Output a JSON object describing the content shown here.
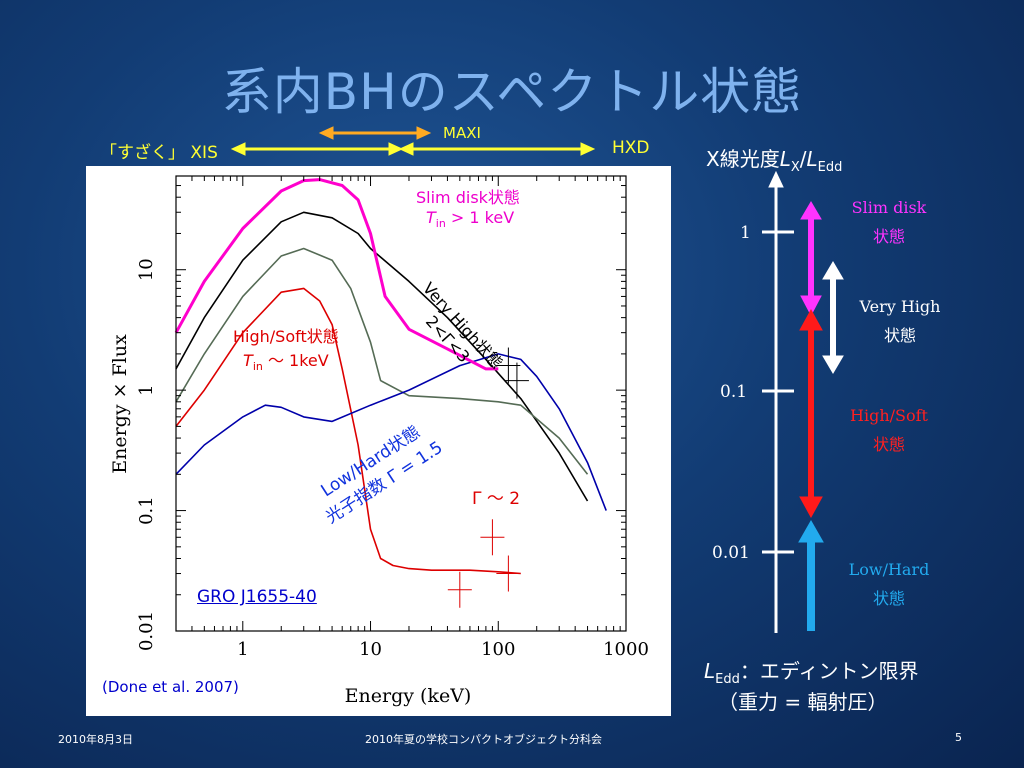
{
  "title": "系内BHのスペクトル状態",
  "instruments": {
    "suzaku": "「すざく」 XIS",
    "maxi": "MAXI",
    "hxd": "HXD"
  },
  "chart_data": {
    "type": "line",
    "source": "GRO J1655-40",
    "citation": "(Done et al. 2007)",
    "xlabel": "Energy (keV)",
    "ylabel": "Energy × Flux",
    "xscale": "log",
    "yscale": "log",
    "xlim": [
      0.3,
      1000
    ],
    "ylim": [
      0.01,
      60
    ],
    "x_ticks": [
      "1",
      "10",
      "100",
      "1000"
    ],
    "y_ticks": [
      "0.01",
      "0.1",
      "1",
      "10"
    ],
    "series": [
      {
        "name": "Very High",
        "color": "#000000",
        "x": [
          0.3,
          0.5,
          1,
          2,
          3,
          5,
          8,
          10,
          20,
          40,
          80,
          150,
          300,
          500
        ],
        "y": [
          1.5,
          4,
          12,
          25,
          30,
          27,
          20,
          15,
          8,
          4,
          1.8,
          0.85,
          0.3,
          0.12
        ]
      },
      {
        "name": "High/Soft (gray)",
        "color": "#556b55",
        "x": [
          0.3,
          0.5,
          1,
          2,
          3,
          5,
          7,
          10,
          12,
          20,
          50,
          100,
          150,
          300,
          500
        ],
        "y": [
          0.8,
          2,
          6,
          13,
          15,
          12,
          7,
          2.5,
          1.2,
          0.9,
          0.85,
          0.8,
          0.75,
          0.4,
          0.2
        ]
      },
      {
        "name": "High/Soft (red)",
        "color": "#dd0000",
        "x": [
          0.3,
          0.5,
          1,
          2,
          3,
          4,
          5,
          6,
          8,
          10,
          12,
          15,
          20,
          30,
          60,
          100,
          150
        ],
        "y": [
          0.5,
          1,
          3,
          6.5,
          7,
          5.5,
          3.5,
          1.5,
          0.35,
          0.07,
          0.04,
          0.035,
          0.033,
          0.032,
          0.032,
          0.031,
          0.03
        ]
      },
      {
        "name": "Low/Hard",
        "color": "#0000aa",
        "x": [
          0.3,
          0.5,
          1,
          1.5,
          2,
          3,
          5,
          10,
          20,
          50,
          100,
          150,
          200,
          300,
          500,
          700
        ],
        "y": [
          0.2,
          0.35,
          0.6,
          0.75,
          0.72,
          0.6,
          0.55,
          0.75,
          1,
          1.6,
          2,
          1.8,
          1.3,
          0.7,
          0.25,
          0.1
        ]
      },
      {
        "name": "Slim disk",
        "color": "#ff00cc",
        "x": [
          0.3,
          0.5,
          1,
          2,
          3,
          4,
          6,
          8,
          10,
          13,
          20,
          40,
          80,
          100
        ],
        "y": [
          3,
          8,
          22,
          45,
          55,
          56,
          50,
          38,
          20,
          6,
          3.2,
          2.2,
          1.5,
          1.5
        ]
      }
    ],
    "cross_points": [
      {
        "x": 50,
        "y": 0.022,
        "color": "#dd0000"
      },
      {
        "x": 90,
        "y": 0.06,
        "color": "#dd0000"
      },
      {
        "x": 120,
        "y": 0.03,
        "color": "#dd0000"
      },
      {
        "x": 120,
        "y": 1.6,
        "color": "#000000"
      },
      {
        "x": 140,
        "y": 1.2,
        "color": "#000000"
      }
    ],
    "annotations": {
      "slim_title": "Slim disk状態",
      "slim_T": "T",
      "slim_sub": "in",
      "slim_val": " > 1 keV",
      "vh_title": "Very High状態",
      "vh_range": "2<Γ<3",
      "hs_title": "High/Soft状態",
      "hs_T": "T",
      "hs_sub": "in",
      "hs_val": " ～ 1keV",
      "lh_line1": "Low/Hard状態",
      "lh_line2": "光子指数 Γ = 1.5",
      "gamma2": "Γ ～ 2"
    }
  },
  "luminosity_scale": {
    "heading_prefix": "X線光度",
    "heading_L": "L",
    "heading_sub": "X",
    "heading_slash": "/",
    "heading_L2": "L",
    "heading_sub2": "Edd",
    "ticks": [
      "1",
      "0.1",
      "0.01"
    ],
    "states": [
      {
        "line1": "Slim disk",
        "line2": "状態",
        "color": "#ff33ff"
      },
      {
        "line1": "Very High",
        "line2": "状態",
        "color": "#ffffff"
      },
      {
        "line1": "High/Soft",
        "line2": "状態",
        "color": "#ff2020"
      },
      {
        "line1": "Low/Hard",
        "line2": "状態",
        "color": "#22aaee"
      }
    ],
    "ledd_L": "L",
    "ledd_sub": "Edd",
    "ledd_text": "：エディントン限界",
    "ledd_note": "（重力 = 輻射圧）"
  },
  "footer": {
    "date": "2010年8月3日",
    "event": "2010年夏の学校コンパクトオブジェクト分科会",
    "page": "5"
  },
  "colors": {
    "instrument": "#ffff33",
    "maxi_arrow": "#ffaa22",
    "title": "#7fb2ee"
  }
}
